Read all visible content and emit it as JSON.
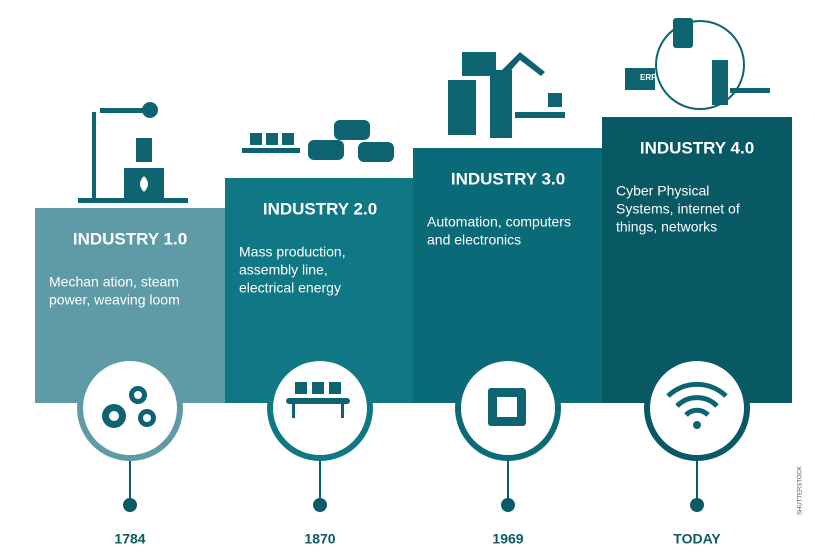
{
  "stages": [
    {
      "title": "INDUSTRY 1.0",
      "description": [
        "Mechan  ation, steam",
        "power, weaving loom"
      ],
      "year": "1784"
    },
    {
      "title": "INDUSTRY 2.0",
      "description": [
        "Mass production,",
        "assembly line,",
        "electrical energy"
      ],
      "year": "1870"
    },
    {
      "title": "INDUSTRY 3.0",
      "description": [
        "Automation, computers",
        "and electronics"
      ],
      "year": "1969"
    },
    {
      "title": "INDUSTRY 4.0",
      "description": [
        "Cyber Physical",
        "Systems, internet of",
        "things, networks"
      ],
      "year": "TODAY"
    }
  ],
  "icon_label": "ERP",
  "watermark": "SHUTTERSTOCK"
}
